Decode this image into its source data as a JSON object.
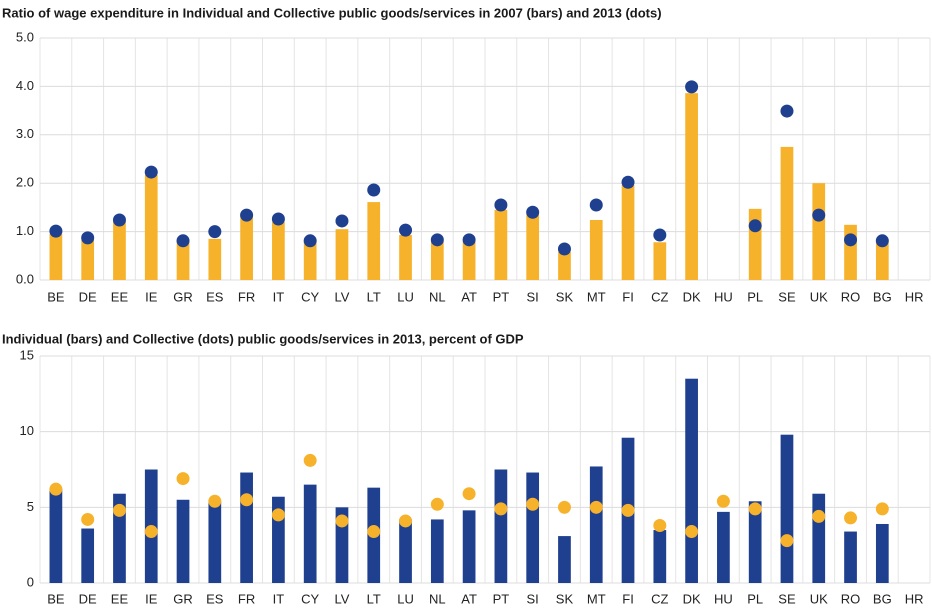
{
  "chart_data": [
    {
      "type": "bar",
      "title": "Ratio of wage expenditure in Individual and Collective public goods/services in 2007 (bars) and 2013 (dots)",
      "categories": [
        "BE",
        "DE",
        "EE",
        "IE",
        "GR",
        "ES",
        "FR",
        "IT",
        "CY",
        "LV",
        "LT",
        "LU",
        "NL",
        "AT",
        "PT",
        "SI",
        "SK",
        "MT",
        "FI",
        "CZ",
        "DK",
        "HU",
        "PL",
        "SE",
        "UK",
        "RO",
        "BG",
        "HR"
      ],
      "series": [
        {
          "type": "bar",
          "color": "#f7b22c",
          "values": [
            0.95,
            0.83,
            1.2,
            2.17,
            0.83,
            0.85,
            1.32,
            1.2,
            0.8,
            1.05,
            1.61,
            0.93,
            0.8,
            0.8,
            1.45,
            1.36,
            0.58,
            1.24,
            1.96,
            0.78,
            3.86,
            null,
            1.47,
            2.75,
            2.0,
            1.14,
            0.78,
            null
          ]
        },
        {
          "type": "scatter",
          "color": "#1f3f8f",
          "values": [
            1.01,
            0.87,
            1.24,
            2.23,
            0.81,
            1.0,
            1.34,
            1.26,
            0.81,
            1.22,
            1.86,
            1.03,
            0.83,
            0.83,
            1.55,
            1.4,
            0.64,
            1.55,
            2.02,
            0.93,
            3.99,
            null,
            1.12,
            3.49,
            1.34,
            0.83,
            0.81,
            null
          ]
        }
      ],
      "ylim": [
        0,
        5
      ],
      "yticks": [
        {
          "value": 0,
          "label": "0.0"
        },
        {
          "value": 1,
          "label": "1.0"
        },
        {
          "value": 2,
          "label": "2.0"
        },
        {
          "value": 3,
          "label": "3.0"
        },
        {
          "value": 4,
          "label": "4.0"
        },
        {
          "value": 5,
          "label": "5.0"
        }
      ],
      "grid": true
    },
    {
      "type": "bar",
      "title": "Individual (bars) and Collective (dots) public goods/services in 2013, percent of GDP",
      "categories": [
        "BE",
        "DE",
        "EE",
        "IE",
        "GR",
        "ES",
        "FR",
        "IT",
        "CY",
        "LV",
        "LT",
        "LU",
        "NL",
        "AT",
        "PT",
        "SI",
        "SK",
        "MT",
        "FI",
        "CZ",
        "DK",
        "HU",
        "PL",
        "SE",
        "UK",
        "RO",
        "BG",
        "HR"
      ],
      "series": [
        {
          "type": "bar",
          "color": "#1f3f8f",
          "values": [
            6.2,
            3.6,
            5.9,
            7.5,
            5.5,
            5.4,
            7.3,
            5.7,
            6.5,
            5.0,
            6.3,
            4.2,
            4.2,
            4.8,
            7.5,
            7.3,
            3.1,
            7.7,
            9.6,
            3.5,
            13.5,
            4.7,
            5.4,
            9.8,
            5.9,
            3.4,
            3.9,
            null
          ]
        },
        {
          "type": "scatter",
          "color": "#f7b22c",
          "values": [
            6.2,
            4.2,
            4.8,
            3.4,
            6.9,
            5.4,
            5.5,
            4.5,
            8.1,
            4.1,
            3.4,
            4.1,
            5.2,
            5.9,
            4.9,
            5.2,
            5.0,
            5.0,
            4.8,
            3.8,
            3.4,
            5.4,
            4.9,
            2.8,
            4.4,
            4.3,
            4.9,
            null
          ]
        }
      ],
      "ylim": [
        0,
        15
      ],
      "yticks": [
        0,
        5,
        10,
        15
      ],
      "grid": true
    }
  ]
}
